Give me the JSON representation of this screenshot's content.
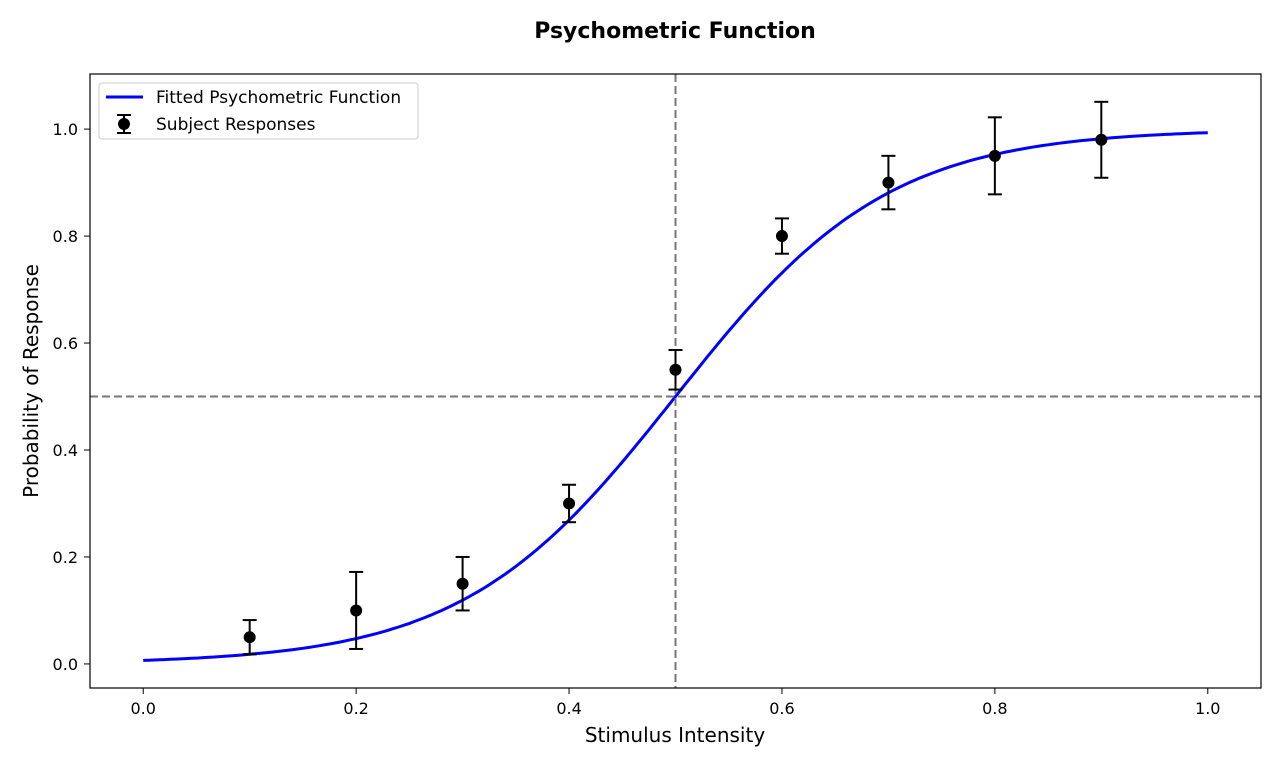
{
  "chart_data": {
    "type": "line",
    "title": "Psychometric Function",
    "xlabel": "Stimulus Intensity",
    "ylabel": "Probability of Response",
    "xlim": [
      -0.05,
      1.05
    ],
    "ylim": [
      -0.045,
      1.103
    ],
    "xticks": [
      "0.0",
      "0.2",
      "0.4",
      "0.6",
      "0.8",
      "1.0"
    ],
    "yticks": [
      "0.0",
      "0.2",
      "0.4",
      "0.6",
      "0.8",
      "1.0"
    ],
    "grid": false,
    "legend": {
      "position": "top-left",
      "entries": [
        "Fitted Psychometric Function",
        "Subject Responses"
      ]
    },
    "series": [
      {
        "name": "Fitted Psychometric Function",
        "kind": "logistic-curve",
        "color": "#0000ff",
        "midpoint": 0.5,
        "slope": 10,
        "x_range": [
          0,
          1
        ]
      },
      {
        "name": "Subject Responses",
        "kind": "errorbar-scatter",
        "color": "#000000",
        "x": [
          0.1,
          0.2,
          0.3,
          0.4,
          0.5,
          0.6,
          0.7,
          0.8,
          0.9
        ],
        "y": [
          0.05,
          0.1,
          0.15,
          0.3,
          0.55,
          0.8,
          0.9,
          0.95,
          0.98
        ],
        "yerr": [
          0.032,
          0.072,
          0.05,
          0.035,
          0.037,
          0.033,
          0.05,
          0.072,
          0.071
        ]
      }
    ],
    "reference_lines": [
      {
        "orientation": "vertical",
        "value": 0.5,
        "style": "dashed",
        "color": "#777777"
      },
      {
        "orientation": "horizontal",
        "value": 0.5,
        "style": "dashed",
        "color": "#777777"
      }
    ]
  }
}
